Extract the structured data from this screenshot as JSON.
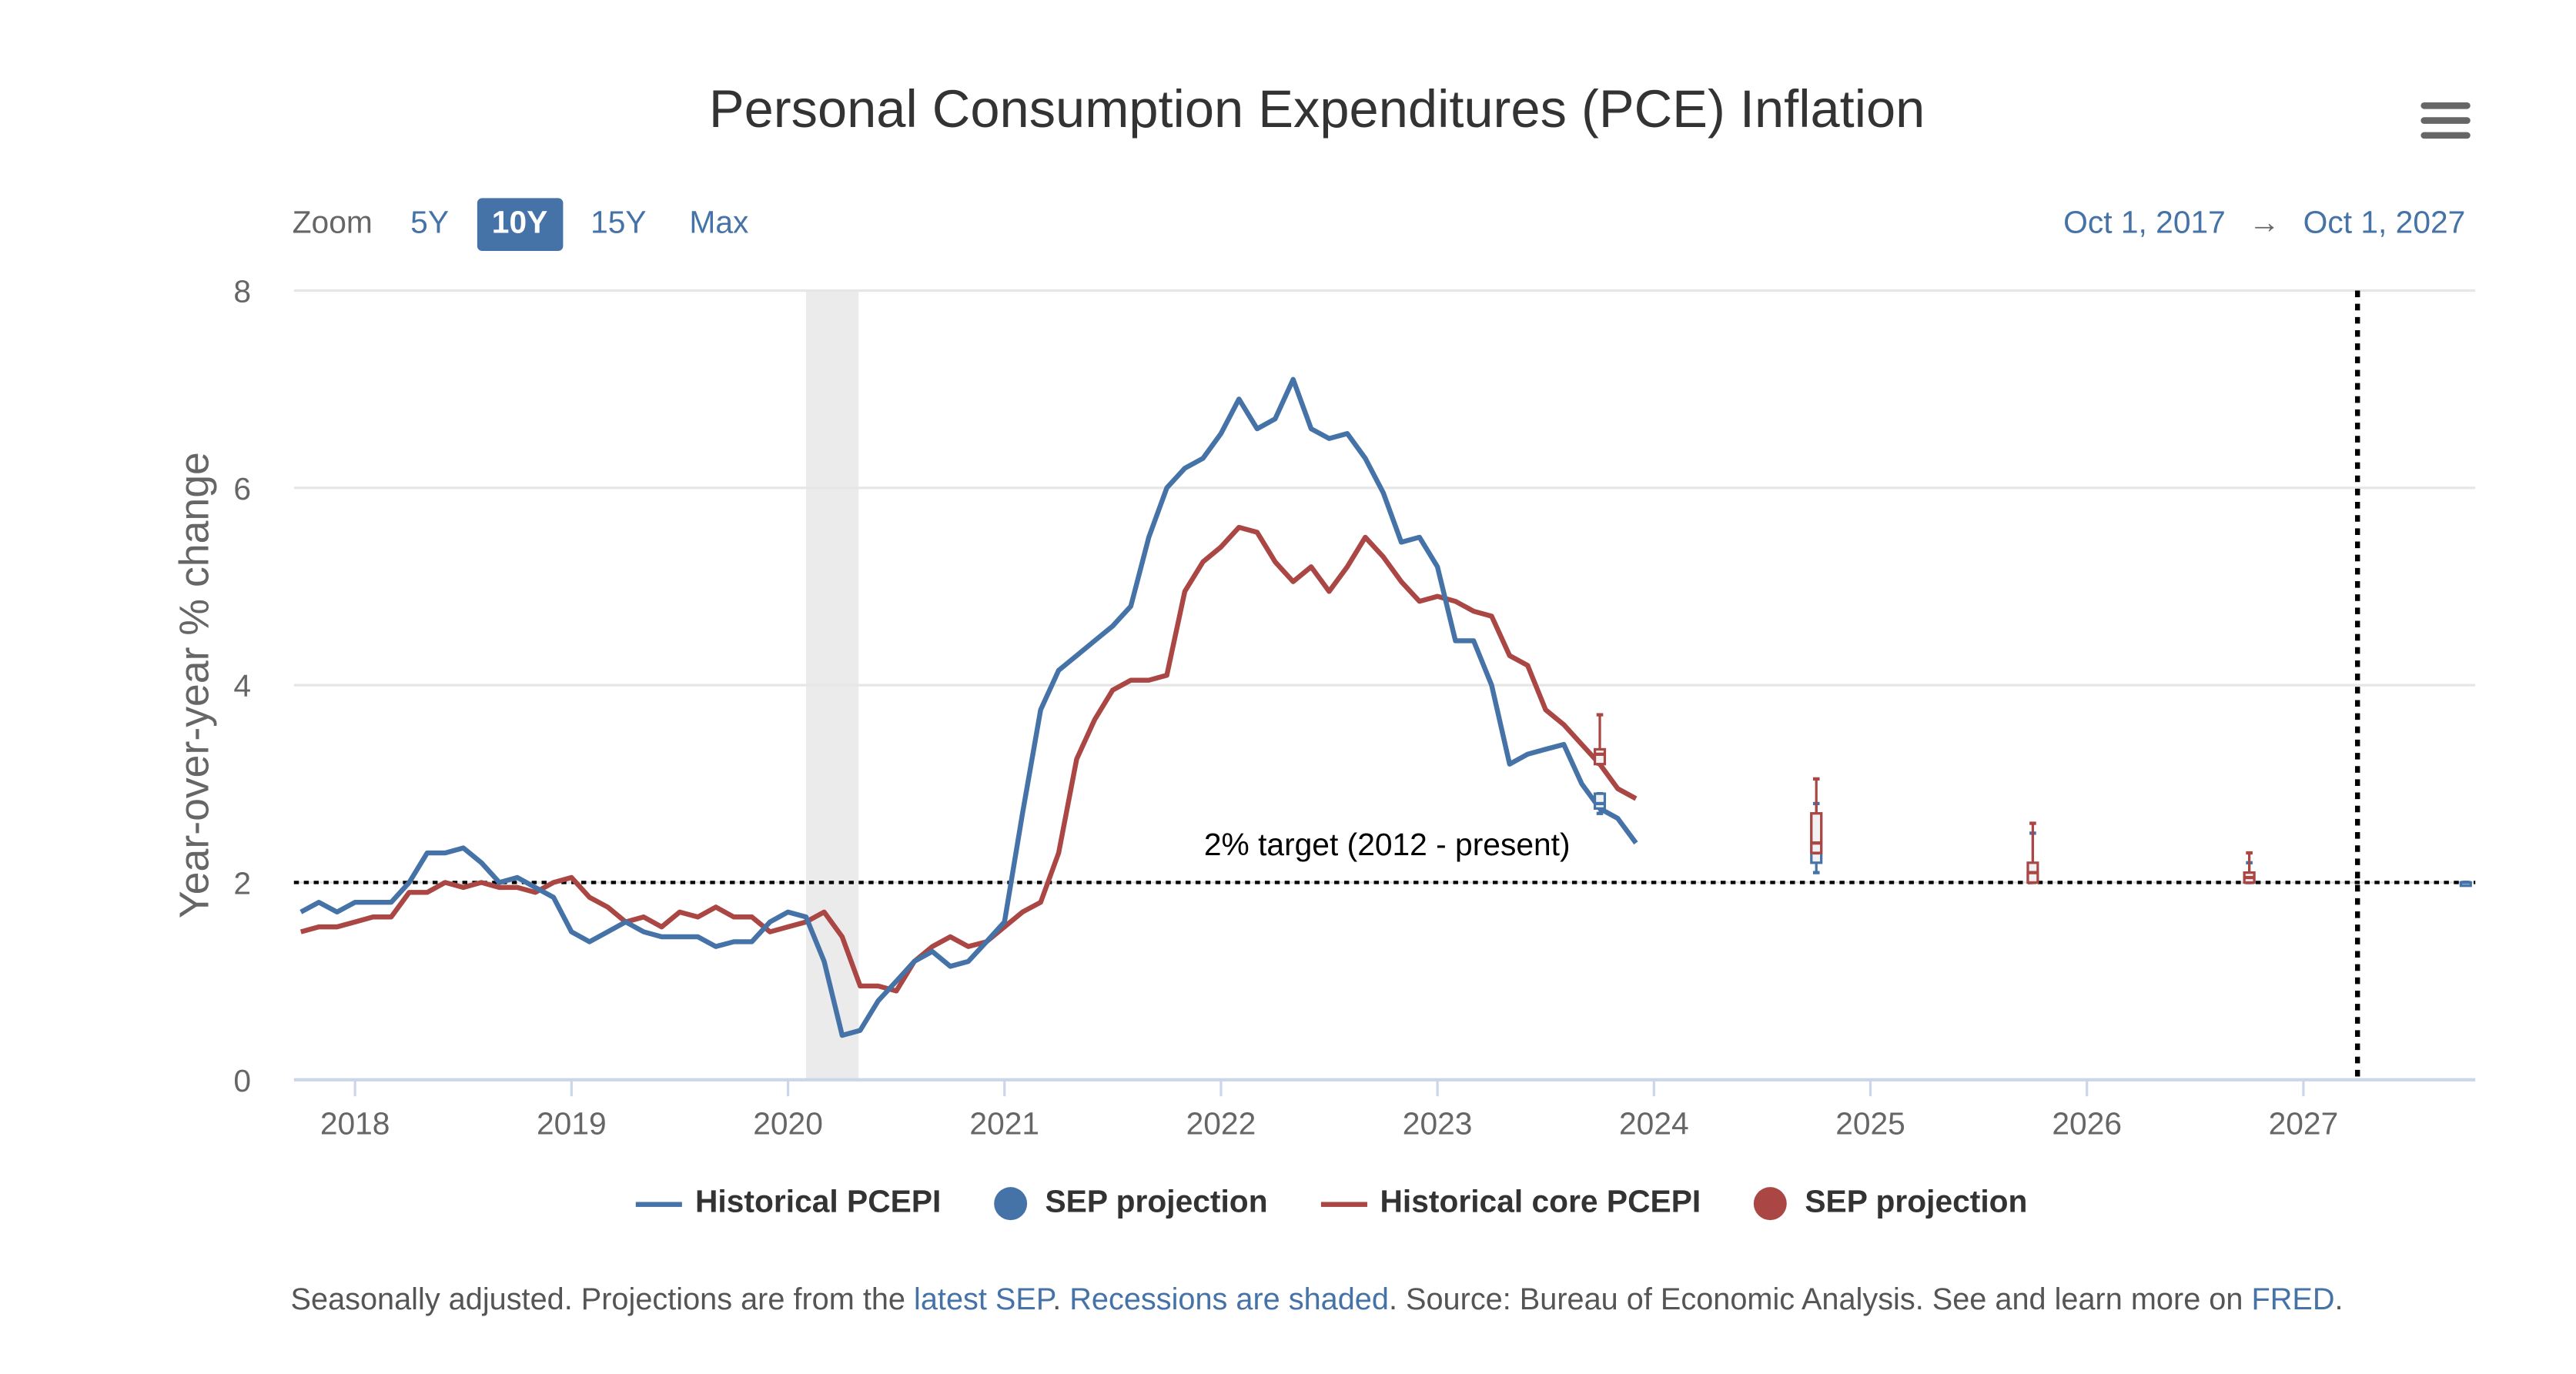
{
  "title": "Personal Consumption Expenditures (PCE) Inflation",
  "zoom": {
    "label": "Zoom",
    "buttons": [
      "5Y",
      "10Y",
      "15Y",
      "Max"
    ],
    "active": "10Y"
  },
  "range": {
    "from": "Oct 1, 2017",
    "arrow": "→",
    "to": "Oct 1, 2027"
  },
  "colors": {
    "headline": "#4572a7",
    "core": "#aa4643",
    "recession": "#ebebeb"
  },
  "footer": {
    "t1": "Seasonally adjusted. Projections are from the ",
    "l1": "latest SEP",
    "t2": ". ",
    "l2": "Recessions are shaded",
    "t3": ". Source: Bureau of Economic Analysis. See and learn more on ",
    "l3": "FRED",
    "t4": "."
  },
  "chart_data": {
    "type": "line",
    "title": "Personal Consumption Expenditures (PCE) Inflation",
    "ylabel": "Year-over-year % change",
    "ylim": [
      0,
      8
    ],
    "yticks": [
      "0",
      "2",
      "4",
      "6",
      "8"
    ],
    "xticks": [
      "2018",
      "2019",
      "2020",
      "2021",
      "2022",
      "2023",
      "2024",
      "2025",
      "2026",
      "2027"
    ],
    "xlim": [
      "2017-10",
      "2027-10"
    ],
    "start": "2017-10",
    "annotation": {
      "text": "2% target (2012 - present)",
      "value": 2
    },
    "recession": {
      "from": "2020-02",
      "to": "2020-04"
    },
    "vertical_marker": "2027-04",
    "series": [
      {
        "name": "Historical PCEPI",
        "color": "#4572a7",
        "values": [
          1.7,
          1.8,
          1.7,
          1.8,
          1.8,
          1.8,
          2.0,
          2.3,
          2.3,
          2.35,
          2.2,
          2.0,
          2.05,
          1.95,
          1.85,
          1.5,
          1.4,
          1.5,
          1.6,
          1.5,
          1.45,
          1.45,
          1.45,
          1.35,
          1.4,
          1.4,
          1.6,
          1.7,
          1.65,
          1.2,
          0.45,
          0.5,
          0.8,
          1.0,
          1.2,
          1.3,
          1.15,
          1.2,
          1.4,
          1.6,
          2.7,
          3.75,
          4.15,
          4.3,
          4.45,
          4.6,
          4.8,
          5.5,
          6.0,
          6.2,
          6.3,
          6.55,
          6.9,
          6.6,
          6.7,
          7.1,
          6.6,
          6.5,
          6.55,
          6.3,
          5.95,
          5.45,
          5.5,
          5.2,
          4.45,
          4.45,
          4.0,
          3.2,
          3.3,
          3.35,
          3.4,
          3.0,
          2.75,
          2.65,
          2.4
        ]
      },
      {
        "name": "Historical core PCEPI",
        "color": "#aa4643",
        "values": [
          1.5,
          1.55,
          1.55,
          1.6,
          1.65,
          1.65,
          1.9,
          1.9,
          2.0,
          1.95,
          2.0,
          1.95,
          1.95,
          1.9,
          2.0,
          2.05,
          1.85,
          1.75,
          1.6,
          1.65,
          1.55,
          1.7,
          1.65,
          1.75,
          1.65,
          1.65,
          1.5,
          1.55,
          1.6,
          1.7,
          1.45,
          0.95,
          0.95,
          0.9,
          1.2,
          1.35,
          1.45,
          1.35,
          1.4,
          1.55,
          1.7,
          1.8,
          2.3,
          3.25,
          3.65,
          3.95,
          4.05,
          4.05,
          4.1,
          4.95,
          5.25,
          5.4,
          5.6,
          5.55,
          5.25,
          5.05,
          5.2,
          4.95,
          5.2,
          5.5,
          5.3,
          5.05,
          4.85,
          4.9,
          4.85,
          4.75,
          4.7,
          4.3,
          4.2,
          3.75,
          3.6,
          3.4,
          3.2,
          2.95,
          2.85
        ]
      }
    ],
    "projections": [
      {
        "name": "SEP projection",
        "series": "PCEPI",
        "color": "#4572a7",
        "points": [
          {
            "date": "2023-10",
            "low": 2.7,
            "q1": 2.75,
            "median": 2.8,
            "q3": 2.9,
            "high": 2.9
          },
          {
            "date": "2024-10",
            "low": 2.1,
            "q1": 2.2,
            "median": 2.4,
            "q3": 2.7,
            "high": 2.8
          },
          {
            "date": "2025-10",
            "low": 2.0,
            "q1": 2.0,
            "median": 2.1,
            "q3": 2.1,
            "high": 2.5
          },
          {
            "date": "2026-10",
            "low": 2.0,
            "q1": 2.0,
            "median": 2.0,
            "q3": 2.1,
            "high": 2.2
          },
          {
            "date": "2027-10",
            "low": 2.0,
            "q1": 2.0,
            "median": 2.0,
            "q3": 2.0,
            "high": 2.0
          }
        ]
      },
      {
        "name": "SEP projection",
        "series": "core PCEPI",
        "color": "#aa4643",
        "points": [
          {
            "date": "2023-10",
            "low": 3.2,
            "q1": 3.2,
            "median": 3.3,
            "q3": 3.35,
            "high": 3.7
          },
          {
            "date": "2024-10",
            "low": 2.3,
            "q1": 2.3,
            "median": 2.4,
            "q3": 2.7,
            "high": 3.05
          },
          {
            "date": "2025-10",
            "low": 2.0,
            "q1": 2.0,
            "median": 2.1,
            "q3": 2.2,
            "high": 2.6
          },
          {
            "date": "2026-10",
            "low": 2.0,
            "q1": 2.0,
            "median": 2.05,
            "q3": 2.1,
            "high": 2.3
          }
        ]
      }
    ],
    "legend": [
      "Historical PCEPI",
      "SEP projection",
      "Historical core PCEPI",
      "SEP projection"
    ],
    "legend_position": "bottom",
    "grid": true
  }
}
